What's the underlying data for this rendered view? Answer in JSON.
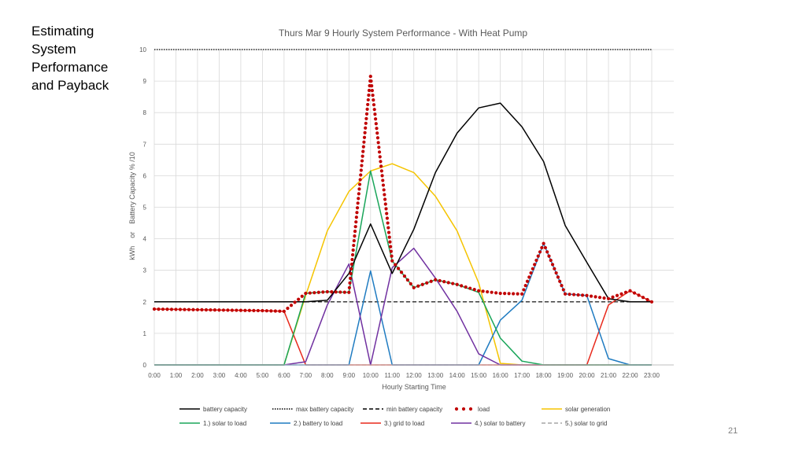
{
  "slide": {
    "title_lines": [
      "Estimating",
      "System",
      "Performance",
      "and Payback"
    ],
    "page_number": "21"
  },
  "colors": {
    "battery_capacity": "#000000",
    "load": "#c00000",
    "solar_generation": "#f5c400",
    "solar_to_load": "#1aa55a",
    "battery_to_load": "#1f7bc1",
    "grid_to_load": "#e8291c",
    "solar_to_battery": "#7030a0",
    "solar_to_grid": "#a6a6a6",
    "gridline": "#d9d9d9"
  },
  "chart_data": {
    "type": "line",
    "title": "Thurs Mar 9 Hourly System Performance - With Heat Pump",
    "xlabel": "Hourly Starting Time",
    "ylabel": "kWh    or    Battery Capacity % /10",
    "ylim": [
      0,
      10
    ],
    "yticks": [
      "0",
      "1",
      "2",
      "3",
      "4",
      "5",
      "6",
      "7",
      "8",
      "9",
      "10"
    ],
    "grid": true,
    "legend_position": "bottom",
    "x": [
      "0:00",
      "1:00",
      "2:00",
      "3:00",
      "4:00",
      "5:00",
      "6:00",
      "7:00",
      "8:00",
      "9:00",
      "10:00",
      "11:00",
      "12:00",
      "13:00",
      "14:00",
      "15:00",
      "16:00",
      "17:00",
      "18:00",
      "19:00",
      "20:00",
      "21:00",
      "22:00",
      "23:00"
    ],
    "series": [
      {
        "name": "battery capacity",
        "style": "solid",
        "color_key": "battery_capacity",
        "values": [
          2,
          2,
          2,
          2,
          2,
          2,
          2,
          2,
          2.05,
          2.9,
          4.47,
          2.9,
          4.3,
          6.1,
          7.35,
          8.15,
          8.3,
          7.55,
          6.45,
          4.42,
          3.25,
          2.1,
          2.0,
          2.0
        ]
      },
      {
        "name": "max battery capacity",
        "style": "dotted",
        "color_key": "battery_capacity",
        "values": [
          10,
          10,
          10,
          10,
          10,
          10,
          10,
          10,
          10,
          10,
          10,
          10,
          10,
          10,
          10,
          10,
          10,
          10,
          10,
          10,
          10,
          10,
          10,
          10
        ]
      },
      {
        "name": "min battery capacity",
        "style": "dashed",
        "color_key": "battery_capacity",
        "values": [
          2,
          2,
          2,
          2,
          2,
          2,
          2,
          2,
          2,
          2,
          2,
          2,
          2,
          2,
          2,
          2,
          2,
          2,
          2,
          2,
          2,
          2,
          2,
          2
        ]
      },
      {
        "name": "load",
        "style": "dots",
        "color_key": "load",
        "values": [
          1.77,
          1.76,
          1.75,
          1.74,
          1.73,
          1.72,
          1.7,
          2.27,
          2.32,
          2.3,
          9.15,
          3.3,
          2.45,
          2.7,
          2.55,
          2.35,
          2.27,
          2.25,
          3.85,
          2.25,
          2.2,
          2.1,
          2.35,
          2.0
        ]
      },
      {
        "name": "solar generation",
        "style": "solid",
        "color_key": "solar_generation",
        "values": [
          0,
          0,
          0,
          0,
          0,
          0,
          0,
          2.2,
          4.25,
          5.5,
          6.15,
          6.38,
          6.1,
          5.35,
          4.25,
          2.6,
          0.05,
          0,
          0,
          0,
          0,
          0,
          0,
          0
        ]
      },
      {
        "name": "1.) solar to load",
        "style": "solid",
        "color_key": "solar_to_load",
        "values": [
          0,
          0,
          0,
          0,
          0,
          0,
          0,
          2.27,
          2.32,
          2.3,
          6.15,
          3.3,
          2.45,
          2.7,
          2.55,
          2.3,
          0.85,
          0.12,
          0,
          0,
          0,
          0,
          0,
          0
        ]
      },
      {
        "name": "2.) battery to load",
        "style": "solid",
        "color_key": "battery_to_load",
        "values": [
          0,
          0,
          0,
          0,
          0,
          0,
          0,
          0,
          0,
          0,
          2.98,
          0,
          0,
          0,
          0,
          0,
          1.42,
          2.05,
          3.85,
          2.25,
          2.2,
          0.2,
          0,
          0
        ]
      },
      {
        "name": "3.) grid to load",
        "style": "solid",
        "color_key": "grid_to_load",
        "values": [
          1.77,
          1.76,
          1.75,
          1.74,
          1.73,
          1.72,
          1.7,
          0,
          0,
          0,
          0,
          0,
          0,
          0,
          0,
          0,
          0,
          0,
          0,
          0,
          0,
          1.9,
          2.35,
          2.0
        ]
      },
      {
        "name": "4.) solar to battery",
        "style": "solid",
        "color_key": "solar_to_battery",
        "values": [
          0,
          0,
          0,
          0,
          0,
          0,
          0,
          0.1,
          1.9,
          3.2,
          0,
          3.08,
          3.7,
          2.75,
          1.7,
          0.35,
          0,
          0,
          0,
          0,
          0,
          0,
          0,
          0
        ]
      },
      {
        "name": "5.) solar to grid",
        "style": "dashed",
        "color_key": "solar_to_grid",
        "values": [
          0,
          0,
          0,
          0,
          0,
          0,
          0,
          0,
          0,
          0,
          0,
          0,
          0,
          0,
          0,
          0,
          0,
          0,
          0,
          0,
          0,
          0,
          0,
          0
        ]
      }
    ]
  }
}
